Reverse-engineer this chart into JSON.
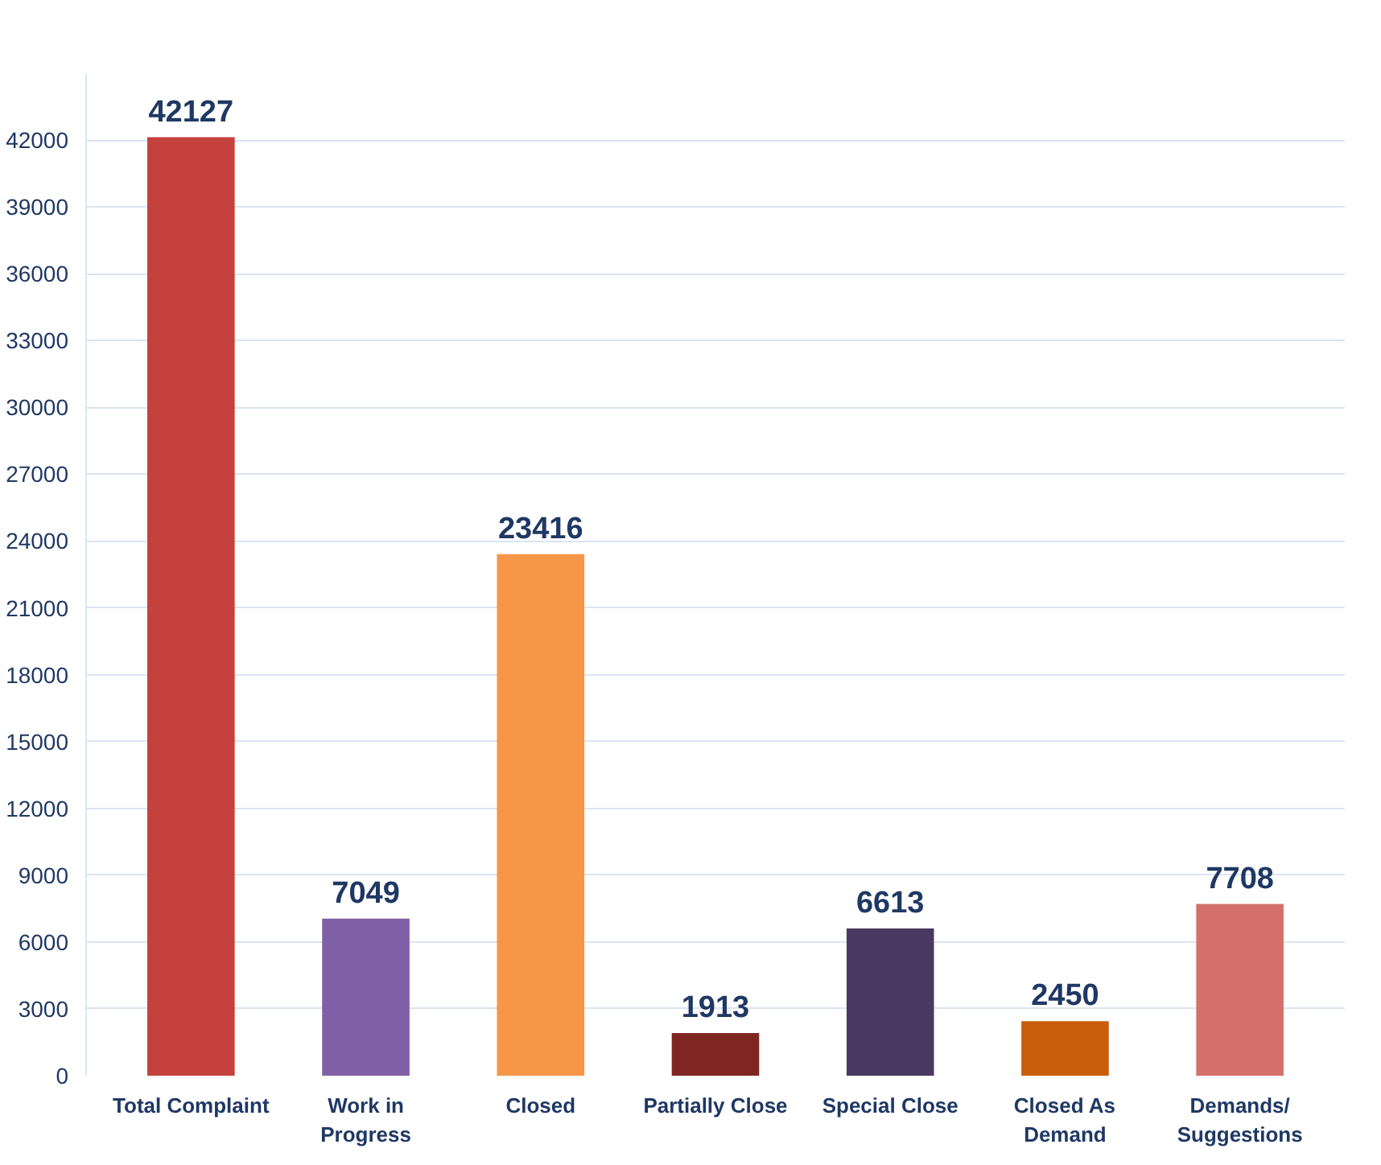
{
  "chart_data": {
    "type": "bar",
    "categories": [
      "Total Complaint",
      "Work in\nProgress",
      "Closed",
      "Partially Close",
      "Special Close",
      "Closed As\nDemand",
      "Demands/\nSuggestions"
    ],
    "values": [
      42127,
      7049,
      23416,
      1913,
      6613,
      2450,
      7708
    ],
    "colors": [
      "#c4413d",
      "#7f5fa5",
      "#f79646",
      "#7f2622",
      "#4a3a62",
      "#c85e0c",
      "#d4706c"
    ],
    "data_labels": true,
    "ylim": [
      0,
      45000
    ],
    "yticks": [
      0,
      3000,
      6000,
      9000,
      12000,
      15000,
      18000,
      21000,
      24000,
      27000,
      30000,
      33000,
      36000,
      39000,
      42000
    ],
    "grid": "y"
  }
}
